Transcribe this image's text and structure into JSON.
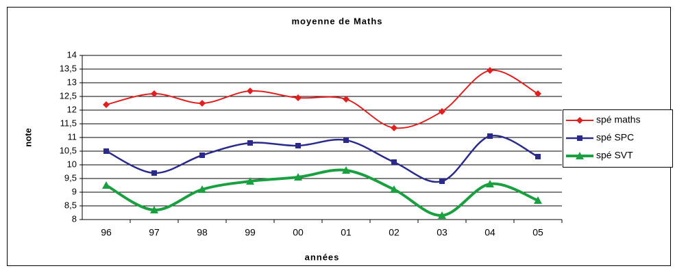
{
  "chart_data": {
    "type": "line",
    "title": "moyenne de Maths",
    "x_label": "années",
    "y_label": "note",
    "categories": [
      "96",
      "97",
      "98",
      "99",
      "00",
      "01",
      "02",
      "03",
      "04",
      "05"
    ],
    "series": [
      {
        "name": "spé maths",
        "color": "#e02020",
        "marker": "diamond",
        "values": [
          12.2,
          12.6,
          12.25,
          12.7,
          12.45,
          12.4,
          11.35,
          11.95,
          13.45,
          12.6
        ]
      },
      {
        "name": "spé SPC",
        "color": "#2a2a8c",
        "marker": "square",
        "values": [
          10.5,
          9.7,
          10.35,
          10.8,
          10.7,
          10.9,
          10.1,
          9.4,
          11.05,
          10.3
        ]
      },
      {
        "name": "spé SVT",
        "color": "#1aa040",
        "marker": "triangle",
        "values": [
          9.25,
          8.35,
          9.1,
          9.4,
          9.55,
          9.8,
          9.1,
          8.15,
          9.3,
          8.7
        ]
      }
    ],
    "ylim": [
      8,
      14
    ],
    "yticks": [
      8,
      {
        "value": 8.5,
        "label": "8,5"
      },
      9,
      {
        "value": 9.5,
        "label": "9,5"
      },
      10,
      {
        "value": 10.5,
        "label": "10,5"
      },
      11,
      {
        "value": 11.5,
        "label": "11,5"
      },
      12,
      {
        "value": 12.5,
        "label": "12,5"
      },
      13,
      {
        "value": 13.5,
        "label": "13,5"
      },
      14
    ],
    "grid": true,
    "smooth": true,
    "legend": "right"
  }
}
